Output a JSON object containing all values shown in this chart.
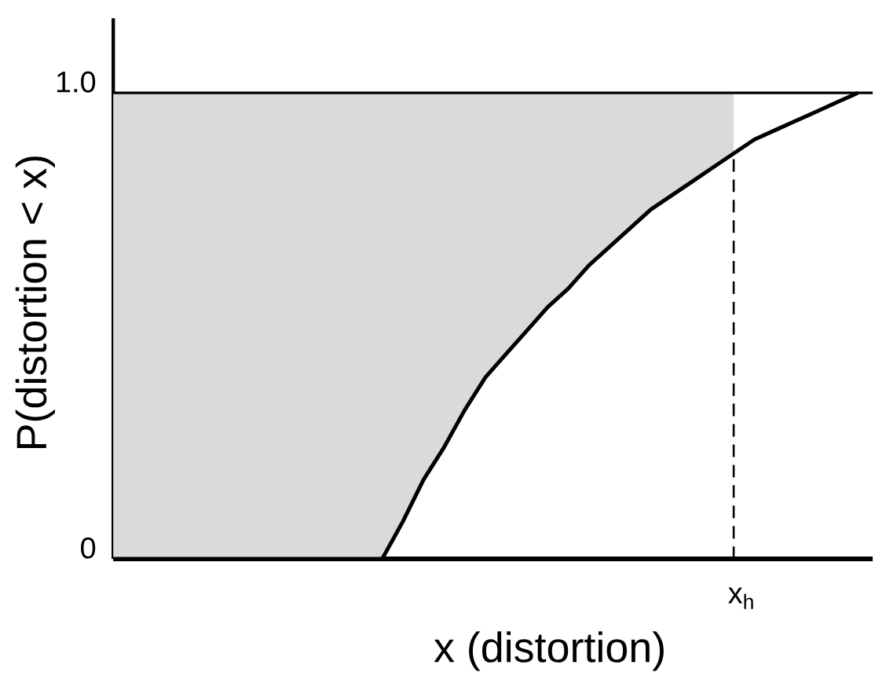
{
  "chart_data": {
    "type": "line",
    "xlabel": "x (distortion)",
    "ylabel": "P(distortion < x)",
    "categories": [
      null,
      null,
      null,
      null,
      null,
      null,
      null,
      null,
      null,
      null,
      null,
      null,
      null,
      null,
      null,
      null,
      null,
      null,
      null,
      null,
      null,
      null,
      null,
      null,
      null,
      null,
      null,
      null,
      null,
      null,
      "x$_{h}$",
      null,
      null,
      null,
      null,
      null,
      null
    ],
    "series": [
      {
        "color": "#000000",
        "values": [
          0,
          0,
          0,
          0,
          0,
          0,
          0,
          0,
          0,
          0,
          0,
          0,
          0,
          0,
          0.08,
          0.17,
          0.24,
          0.32,
          0.39,
          0.44,
          0.49,
          0.54,
          0.58,
          0.63,
          0.67,
          0.71,
          0.75,
          0.78,
          0.81,
          0.84,
          0.87,
          0.9,
          0.92,
          0.94,
          0.96,
          0.98,
          1.0
        ],
        "lower": [
          0,
          0,
          0,
          0,
          0,
          0,
          0,
          0,
          0,
          0,
          0,
          0,
          0,
          0,
          0.08,
          0.17,
          0.24,
          0.32,
          0.39,
          0.44,
          0.49,
          0.54,
          0.58,
          0.63,
          0.67,
          0.71,
          0.75,
          0.78,
          0.81,
          0.84,
          0.87,
          null,
          null,
          null,
          null,
          null,
          null
        ],
        "upper": [
          1,
          1,
          1,
          1,
          1,
          1,
          1,
          1,
          1,
          1,
          1,
          1,
          1,
          1,
          1,
          1,
          1,
          1,
          1,
          1,
          1,
          1,
          1,
          1,
          1,
          1,
          1,
          1,
          1,
          1,
          1,
          null,
          null,
          null,
          null,
          null,
          null
        ]
      }
    ],
    "ylim": [
      0,
      1.16
    ],
    "yticks": [
      0,
      {
        "value": 1,
        "label": "1.0"
      }
    ],
    "ref_lines": [
      {
        "axis": "y",
        "value": 1
      },
      {
        "axis": "x",
        "value": "x$_{h}$",
        "line_style": "dashed"
      }
    ],
    "marker": "none",
    "line_style": "solid"
  }
}
